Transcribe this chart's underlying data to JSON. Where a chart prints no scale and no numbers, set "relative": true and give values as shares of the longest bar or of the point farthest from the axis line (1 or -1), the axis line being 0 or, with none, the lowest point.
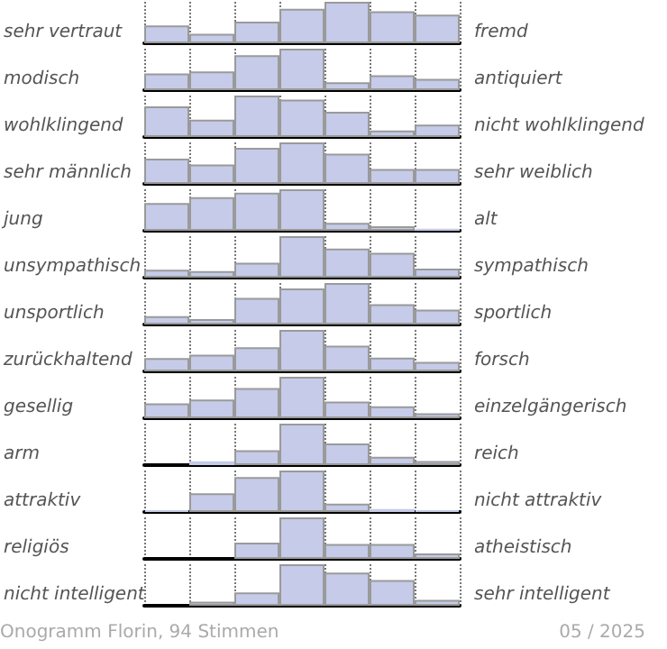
{
  "chart_data": [
    {
      "type": "bar",
      "relative": true,
      "categories": [
        null,
        null,
        null,
        null,
        null,
        null,
        null
      ],
      "values": [
        0.43,
        0.23,
        0.52,
        0.83,
        1,
        0.77,
        0.69
      ],
      "color": "#c5cbe8",
      "ylabel": "sehr vertraut",
      "y2label": "fremd",
      "grid": "x"
    },
    {
      "type": "bar",
      "relative": true,
      "categories": [
        null,
        null,
        null,
        null,
        null,
        null,
        null
      ],
      "values": [
        0.4,
        0.45,
        0.84,
        1,
        0.19,
        0.36,
        0.27
      ],
      "color": "#c5cbe8",
      "ylabel": "modisch",
      "y2label": "antiquiert",
      "grid": "x"
    },
    {
      "type": "bar",
      "relative": true,
      "categories": [
        null,
        null,
        null,
        null,
        null,
        null,
        null
      ],
      "values": [
        0.74,
        0.42,
        1,
        0.9,
        0.61,
        0.16,
        0.3
      ],
      "color": "#c5cbe8",
      "ylabel": "wohlklingend",
      "y2label": "nicht wohlklingend",
      "grid": "x"
    },
    {
      "type": "bar",
      "relative": true,
      "categories": [
        null,
        null,
        null,
        null,
        null,
        null,
        null
      ],
      "values": [
        0.61,
        0.47,
        0.87,
        1,
        0.73,
        0.36,
        0.36
      ],
      "color": "#c5cbe8",
      "ylabel": "sehr männlich",
      "y2label": "sehr weiblich",
      "grid": "x"
    },
    {
      "type": "bar",
      "relative": true,
      "categories": [
        null,
        null,
        null,
        null,
        null,
        null,
        null
      ],
      "values": [
        0.67,
        0.81,
        0.92,
        1,
        0.19,
        0.11,
        0.05
      ],
      "color": "#c5cbe8",
      "ylabel": "jung",
      "y2label": "alt",
      "grid": "x"
    },
    {
      "type": "bar",
      "relative": true,
      "categories": [
        null,
        null,
        null,
        null,
        null,
        null,
        null
      ],
      "values": [
        0.19,
        0.16,
        0.36,
        1,
        0.7,
        0.6,
        0.22
      ],
      "color": "#c5cbe8",
      "ylabel": "unsympathisch",
      "y2label": "sympathisch",
      "grid": "x"
    },
    {
      "type": "bar",
      "relative": true,
      "categories": [
        null,
        null,
        null,
        null,
        null,
        null,
        null
      ],
      "values": [
        0.2,
        0.13,
        0.64,
        0.87,
        1,
        0.49,
        0.36
      ],
      "color": "#c5cbe8",
      "ylabel": "unsportlich",
      "y2label": "sportlich",
      "grid": "x"
    },
    {
      "type": "bar",
      "relative": true,
      "categories": [
        null,
        null,
        null,
        null,
        null,
        null,
        null
      ],
      "values": [
        0.32,
        0.4,
        0.58,
        1,
        0.62,
        0.33,
        0.23
      ],
      "color": "#c5cbe8",
      "ylabel": "zurückhaltend",
      "y2label": "forsch",
      "grid": "x"
    },
    {
      "type": "bar",
      "relative": true,
      "categories": [
        null,
        null,
        null,
        null,
        null,
        null,
        null
      ],
      "values": [
        0.36,
        0.45,
        0.73,
        1,
        0.4,
        0.29,
        0.12
      ],
      "color": "#c5cbe8",
      "ylabel": "gesellig",
      "y2label": "einzelgängerisch",
      "grid": "x"
    },
    {
      "type": "bar",
      "relative": true,
      "categories": [
        null,
        null,
        null,
        null,
        null,
        null,
        null
      ],
      "values": [
        0,
        0.09,
        0.36,
        1,
        0.52,
        0.2,
        0.1
      ],
      "color": "#c5cbe8",
      "ylabel": "arm",
      "y2label": "reich",
      "grid": "x"
    },
    {
      "type": "bar",
      "relative": true,
      "categories": [
        null,
        null,
        null,
        null,
        null,
        null,
        null
      ],
      "values": [
        0.04,
        0.45,
        0.84,
        1,
        0.2,
        0.07,
        0.04
      ],
      "color": "#c5cbe8",
      "ylabel": "attraktiv",
      "y2label": "nicht attraktiv",
      "grid": "x"
    },
    {
      "type": "bar",
      "relative": true,
      "categories": [
        null,
        null,
        null,
        null,
        null,
        null,
        null
      ],
      "values": [
        0,
        0,
        0.39,
        1,
        0.36,
        0.36,
        0.13
      ],
      "color": "#c5cbe8",
      "ylabel": "religiös",
      "y2label": "atheistisch",
      "grid": "x"
    },
    {
      "type": "bar",
      "relative": true,
      "categories": [
        null,
        null,
        null,
        null,
        null,
        null,
        null
      ],
      "values": [
        0,
        0.1,
        0.32,
        1,
        0.8,
        0.62,
        0.14
      ],
      "color": "#c5cbe8",
      "ylabel": "nicht intelligent",
      "y2label": "sehr intelligent",
      "grid": "x",
      "annotations": [
        "Onogramm Florin, 94 Stimmen",
        "05 / 2025"
      ]
    }
  ]
}
